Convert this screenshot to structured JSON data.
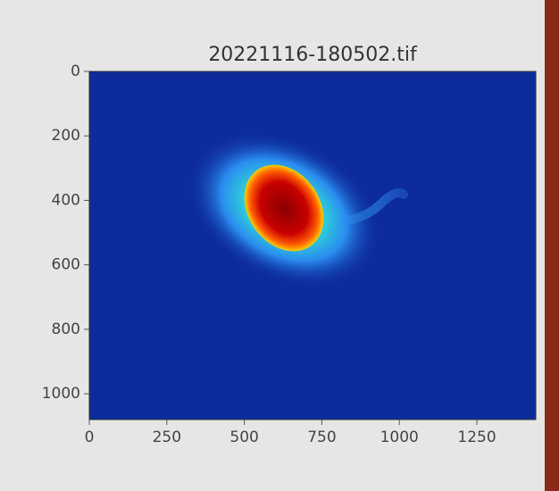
{
  "chart_data": {
    "type": "image",
    "title": "20221116-180502.tif",
    "xlim": [
      0,
      1440
    ],
    "ylim": [
      1080,
      0
    ],
    "xticks": [
      0,
      250,
      500,
      750,
      1000,
      1250
    ],
    "yticks": [
      0,
      200,
      400,
      600,
      800,
      1000
    ],
    "colormap": "jet"
  }
}
